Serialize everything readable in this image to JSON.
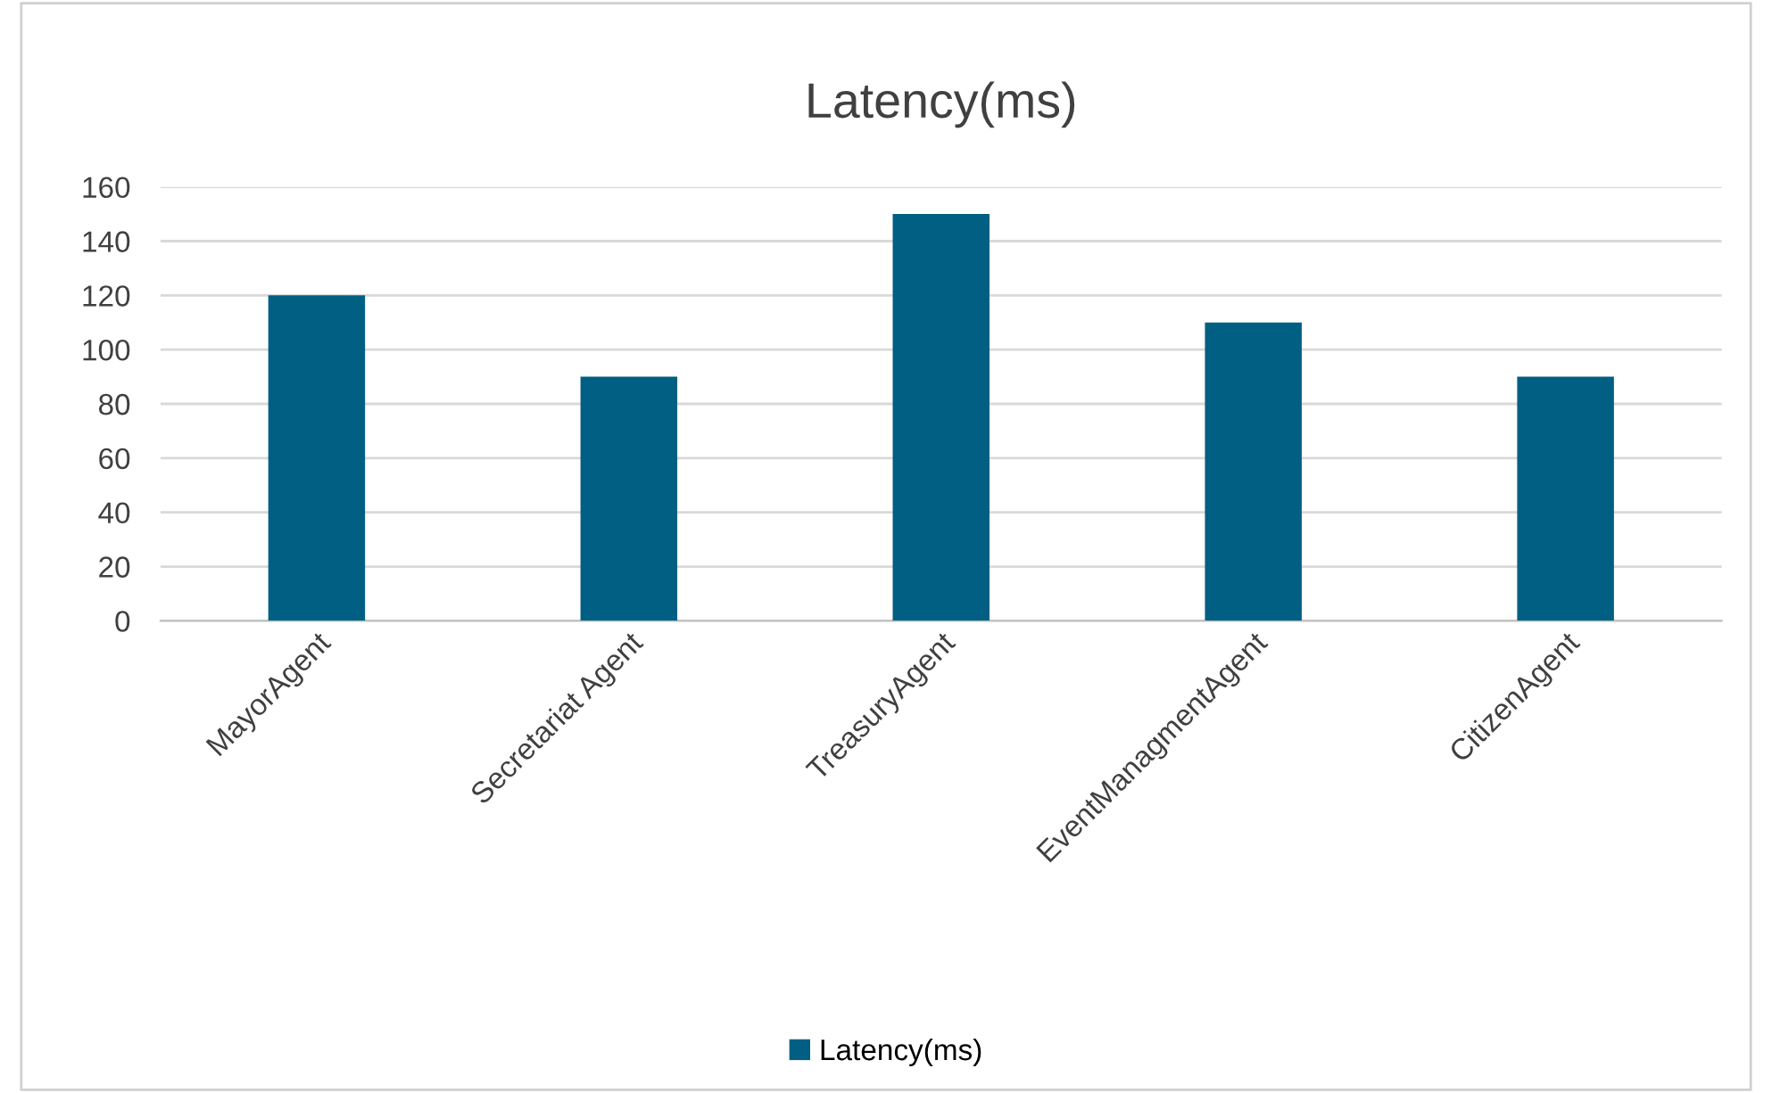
{
  "chart_data": {
    "type": "bar",
    "title": "Latency(ms)",
    "categories": [
      "MayorAgent",
      "Secretariat Agent",
      "TreasuryAgent",
      "EventManagmentAgent",
      "CitizenAgent"
    ],
    "series": [
      {
        "name": "Latency(ms)",
        "color": "#005f82",
        "values": [
          120,
          90,
          150,
          110,
          90
        ]
      }
    ],
    "ylim": [
      0,
      160
    ],
    "yticks": [
      0,
      20,
      40,
      60,
      80,
      100,
      120,
      140,
      160
    ],
    "grid": "y",
    "legend": "bottom"
  }
}
